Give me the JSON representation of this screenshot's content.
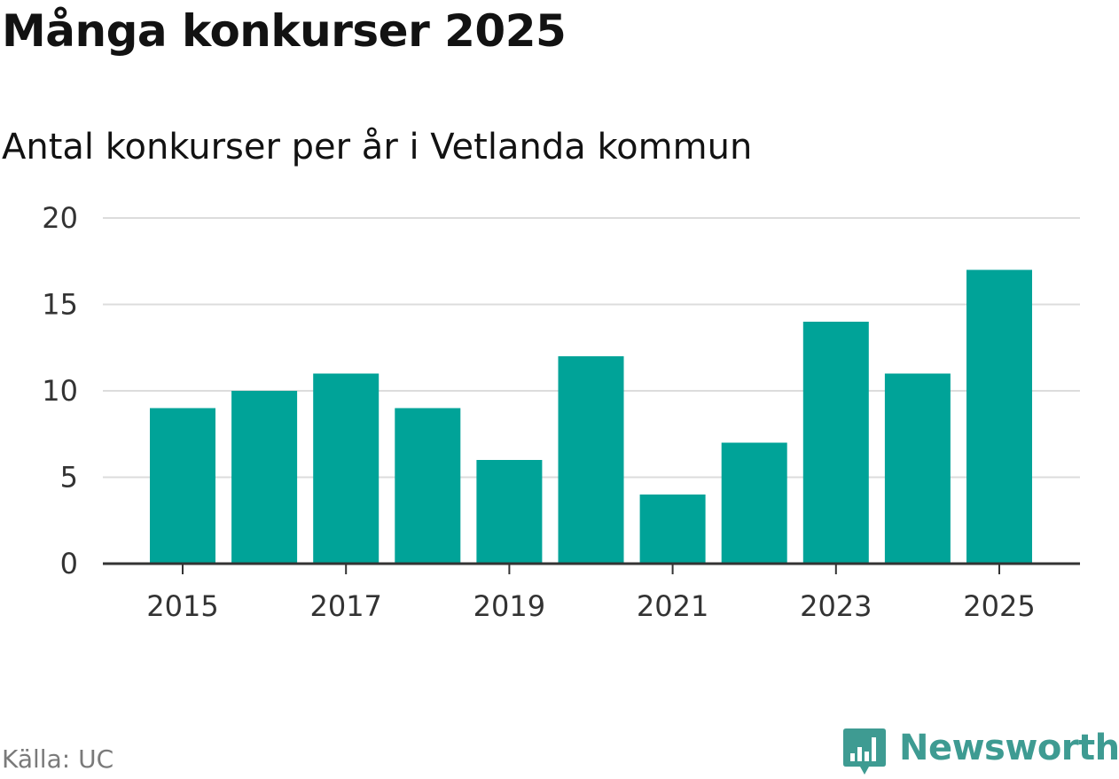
{
  "header": {
    "title": "Många konkurser 2025",
    "subtitle": "Antal konkurser per år i Vetlanda kommun"
  },
  "footer": {
    "source": "Källa: UC",
    "brand": "Newsworthy",
    "brand_icon": "bar-chart-speech-bubble-icon"
  },
  "colors": {
    "bar": "#00a398",
    "grid": "#dcdcdc",
    "axis": "#333333",
    "brand": "#3e9b92"
  },
  "chart_data": {
    "type": "bar",
    "title": "Många konkurser 2025",
    "subtitle": "Antal konkurser per år i Vetlanda kommun",
    "categories": [
      "2015",
      "2016",
      "2017",
      "2018",
      "2019",
      "2020",
      "2021",
      "2022",
      "2023",
      "2024",
      "2025"
    ],
    "values": [
      9,
      10,
      11,
      9,
      6,
      12,
      4,
      7,
      14,
      11,
      17
    ],
    "x_tick_labels": [
      "2015",
      "2017",
      "2019",
      "2021",
      "2023",
      "2025"
    ],
    "y_ticks": [
      0,
      5,
      10,
      15,
      20
    ],
    "ylim": [
      0,
      20
    ],
    "xlabel": "",
    "ylabel": "",
    "grid": true,
    "legend": "none"
  }
}
